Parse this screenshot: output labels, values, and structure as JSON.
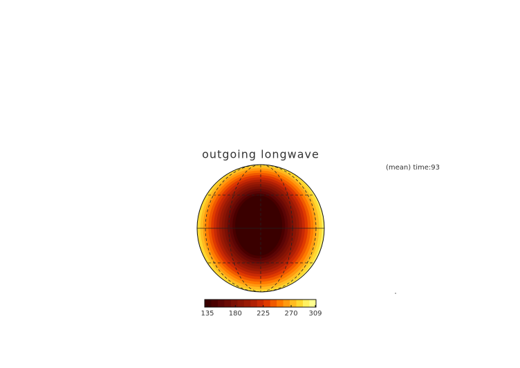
{
  "chart_data": {
    "type": "contour",
    "title": "outgoing longwave",
    "annotation": "(mean) time:93",
    "clim": [
      135,
      309
    ],
    "cticks": [
      135,
      180,
      225,
      270,
      309
    ],
    "colors": [
      "#3a0000",
      "#4a0000",
      "#5a0505",
      "#6a0a05",
      "#7a1005",
      "#8a1505",
      "#9a1a05",
      "#b02005",
      "#c82a05",
      "#e03a00",
      "#f05a00",
      "#ff7a00",
      "#ff9a10",
      "#ffbb20",
      "#ffd830",
      "#fff060",
      "#ffff90"
    ]
  }
}
